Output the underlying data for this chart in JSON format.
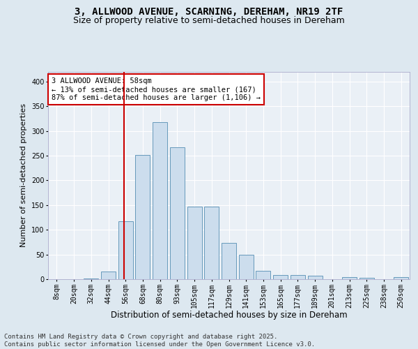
{
  "title1": "3, ALLWOOD AVENUE, SCARNING, DEREHAM, NR19 2TF",
  "title2": "Size of property relative to semi-detached houses in Dereham",
  "xlabel": "Distribution of semi-detached houses by size in Dereham",
  "ylabel": "Number of semi-detached properties",
  "categories": [
    "8sqm",
    "20sqm",
    "32sqm",
    "44sqm",
    "56sqm",
    "68sqm",
    "80sqm",
    "93sqm",
    "105sqm",
    "117sqm",
    "129sqm",
    "141sqm",
    "153sqm",
    "165sqm",
    "177sqm",
    "189sqm",
    "201sqm",
    "213sqm",
    "225sqm",
    "238sqm",
    "250sqm"
  ],
  "values": [
    0,
    0,
    2,
    15,
    117,
    252,
    317,
    267,
    147,
    147,
    73,
    50,
    17,
    9,
    8,
    7,
    0,
    4,
    3,
    0,
    4
  ],
  "bar_color": "#ccdded",
  "bar_edge_color": "#6699bb",
  "highlight_line_index": 4,
  "highlight_line_color": "#cc0000",
  "annotation_text": "3 ALLWOOD AVENUE: 58sqm\n← 13% of semi-detached houses are smaller (167)\n87% of semi-detached houses are larger (1,106) →",
  "annotation_box_color": "#ffffff",
  "annotation_box_edge_color": "#cc0000",
  "footer_text": "Contains HM Land Registry data © Crown copyright and database right 2025.\nContains public sector information licensed under the Open Government Licence v3.0.",
  "ylim": [
    0,
    420
  ],
  "yticks": [
    0,
    50,
    100,
    150,
    200,
    250,
    300,
    350,
    400
  ],
  "background_color": "#dde8f0",
  "plot_background_color": "#eaf0f6",
  "grid_color": "#ffffff",
  "title1_fontsize": 10,
  "title2_fontsize": 9,
  "xlabel_fontsize": 8.5,
  "ylabel_fontsize": 8,
  "tick_fontsize": 7,
  "annotation_fontsize": 7.5,
  "footer_fontsize": 6.5
}
